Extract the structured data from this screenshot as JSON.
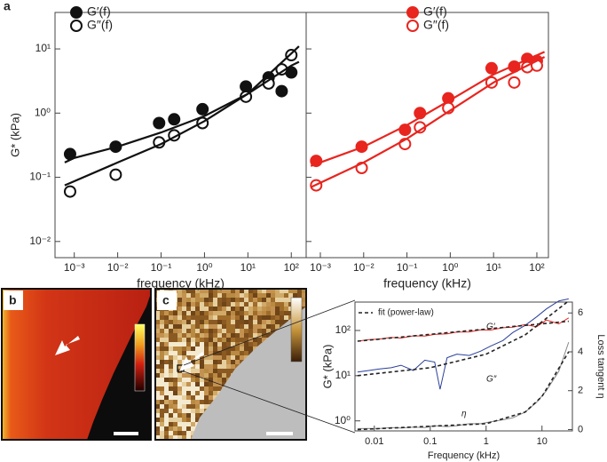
{
  "panel_labels": [
    "a",
    "b",
    "c"
  ],
  "chart_data": [
    {
      "type": "scatter",
      "xlabel": "frequency (kHz)",
      "ylabel": "G* (kPa)",
      "xlog": true,
      "ylog": true,
      "xlim": [
        0.00036,
        220
      ],
      "ylim": [
        0.0056,
        37
      ],
      "xticks": [
        {
          "value": 0.001,
          "label": "10⁻³"
        },
        {
          "value": 0.01,
          "label": "10⁻²"
        },
        {
          "value": 0.1,
          "label": "10⁻¹"
        },
        {
          "value": 1,
          "label": "10⁰"
        },
        {
          "value": 10,
          "label": "10¹"
        },
        {
          "value": 100,
          "label": "10²"
        }
      ],
      "yticks": [
        {
          "value": 0.01,
          "label": "10⁻²"
        },
        {
          "value": 0.1,
          "label": "10⁻¹"
        },
        {
          "value": 1,
          "label": "10⁰"
        },
        {
          "value": 10,
          "label": "10¹"
        }
      ],
      "series": [
        {
          "name": "G′(f)",
          "color": "#111111",
          "mode": "markers",
          "filled": true,
          "x": [
            0.0008,
            0.009,
            0.09,
            0.2,
            0.9,
            9,
            30,
            60,
            100
          ],
          "values": [
            0.23,
            0.3,
            0.7,
            0.8,
            1.15,
            2.6,
            3.6,
            2.2,
            4.3
          ]
        },
        {
          "name": "G″(f)",
          "color": "#111111",
          "mode": "markers",
          "filled": false,
          "x": [
            0.0008,
            0.009,
            0.09,
            0.2,
            0.9,
            9,
            30,
            60,
            100
          ],
          "values": [
            0.06,
            0.11,
            0.35,
            0.45,
            0.7,
            1.8,
            2.9,
            4.8,
            8
          ]
        },
        {
          "color": "#111111",
          "mode": "line",
          "x": [
            0.0006,
            0.001,
            0.01,
            0.1,
            1,
            10,
            100,
            150
          ],
          "values": [
            0.17,
            0.2,
            0.3,
            0.5,
            0.9,
            2.0,
            5.5,
            6.3
          ]
        },
        {
          "color": "#111111",
          "mode": "line",
          "x": [
            0.0006,
            0.01,
            0.1,
            1,
            10,
            100,
            150
          ],
          "values": [
            0.075,
            0.17,
            0.33,
            0.75,
            2.0,
            8.5,
            11
          ]
        }
      ]
    },
    {
      "type": "scatter",
      "xlabel": "frequency (kHz)",
      "xlog": true,
      "ylog": true,
      "xlim": [
        0.00047,
        185
      ],
      "ylim": [
        0.0056,
        37
      ],
      "xticks": [
        {
          "value": 0.001,
          "label": "10⁻³"
        },
        {
          "value": 0.01,
          "label": "10⁻²"
        },
        {
          "value": 0.1,
          "label": "10⁻¹"
        },
        {
          "value": 1,
          "label": "10⁰"
        },
        {
          "value": 10,
          "label": "10¹"
        },
        {
          "value": 100,
          "label": "10²"
        }
      ],
      "series": [
        {
          "name": "G′(f)",
          "color": "#e8251f",
          "mode": "markers",
          "filled": true,
          "x": [
            0.0008,
            0.009,
            0.09,
            0.2,
            0.9,
            9,
            30,
            60,
            100
          ],
          "values": [
            0.18,
            0.3,
            0.55,
            1.0,
            1.7,
            5.0,
            5.3,
            7.0,
            6.5
          ]
        },
        {
          "name": "G″(f)",
          "color": "#e8251f",
          "mode": "markers",
          "filled": false,
          "x": [
            0.0008,
            0.009,
            0.09,
            0.2,
            0.9,
            9,
            30,
            60,
            100
          ],
          "values": [
            0.075,
            0.14,
            0.33,
            0.6,
            1.2,
            3.0,
            3.0,
            5.2,
            5.5
          ]
        },
        {
          "color": "#e8251f",
          "mode": "line",
          "x": [
            0.0006,
            0.01,
            0.1,
            1,
            10,
            150
          ],
          "values": [
            0.15,
            0.3,
            0.65,
            1.6,
            4,
            9
          ]
        },
        {
          "color": "#e8251f",
          "mode": "line",
          "x": [
            0.0006,
            0.01,
            0.1,
            1,
            10,
            150
          ],
          "values": [
            0.07,
            0.17,
            0.4,
            1.1,
            3,
            7.5
          ]
        }
      ]
    },
    {
      "type": "line",
      "xlabel": "Frequency (kHz)",
      "ylabel": "G* (kPa)",
      "y2label": "Loss tangent η",
      "xlog": true,
      "ylog": true,
      "xlim": [
        0.0045,
        35
      ],
      "ylim": [
        0.6,
        425
      ],
      "y2lim": [
        -0.07,
        6.56
      ],
      "xticks": [
        0.01,
        0.1,
        1,
        10
      ],
      "yticks": [
        {
          "value": 1,
          "label": "10⁰"
        },
        {
          "value": 10,
          "label": "10¹"
        },
        {
          "value": 100,
          "label": "10²"
        }
      ],
      "y2ticks": [
        0,
        2,
        4,
        6
      ],
      "annotations": [
        "G′",
        "G″",
        "η"
      ],
      "series": [
        {
          "color": "#e8251f",
          "mode": "line",
          "x": [
            0.005,
            0.008,
            0.012,
            0.02,
            0.03,
            0.05,
            0.08,
            0.12,
            0.2,
            0.3,
            0.5,
            0.8,
            1.2,
            2,
            3,
            5,
            8,
            12,
            20,
            30
          ],
          "values": [
            58,
            63,
            64,
            70,
            68,
            76,
            75,
            82,
            84,
            92,
            93,
            103,
            102,
            115,
            118,
            135,
            120,
            170,
            140,
            190
          ]
        },
        {
          "color": "#2a3f9a",
          "mode": "line",
          "x": [
            0.005,
            0.008,
            0.012,
            0.02,
            0.03,
            0.05,
            0.08,
            0.12,
            0.15,
            0.2,
            0.3,
            0.5,
            0.8,
            1.2,
            2,
            3,
            5,
            8,
            12,
            20,
            30
          ],
          "values": [
            12,
            13,
            14,
            15,
            17,
            13,
            22,
            20,
            5,
            25,
            30,
            28,
            35,
            45,
            60,
            90,
            130,
            200,
            300,
            450,
            500
          ]
        },
        {
          "color": "#888888",
          "mode": "line",
          "axis": "y2",
          "x": [
            0.005,
            0.008,
            0.012,
            0.02,
            0.03,
            0.05,
            0.08,
            0.12,
            0.2,
            0.3,
            0.5,
            0.8,
            1.2,
            2,
            3,
            5,
            8,
            12,
            20,
            30
          ],
          "values": [
            0.05,
            0.06,
            0.05,
            0.1,
            0.08,
            0.12,
            0.1,
            0.2,
            0.15,
            0.2,
            0.3,
            0.3,
            0.4,
            0.5,
            0.6,
            0.9,
            1.4,
            2.0,
            3.0,
            4.5
          ]
        },
        {
          "name": "fit (power-law)",
          "color": "#222222",
          "mode": "line",
          "dash": true,
          "x": [
            0.005,
            30
          ],
          "values": [
            58,
            160
          ]
        },
        {
          "color": "#222222",
          "mode": "line",
          "dash": true,
          "x": [
            0.005,
            0.1,
            1,
            5,
            30
          ],
          "values": [
            10,
            15,
            30,
            80,
            450
          ]
        },
        {
          "color": "#222222",
          "mode": "line",
          "dash": true,
          "axis": "y2",
          "x": [
            0.005,
            1,
            5,
            10,
            30
          ],
          "values": [
            0,
            0.3,
            0.9,
            1.7,
            4
          ]
        }
      ]
    }
  ]
}
